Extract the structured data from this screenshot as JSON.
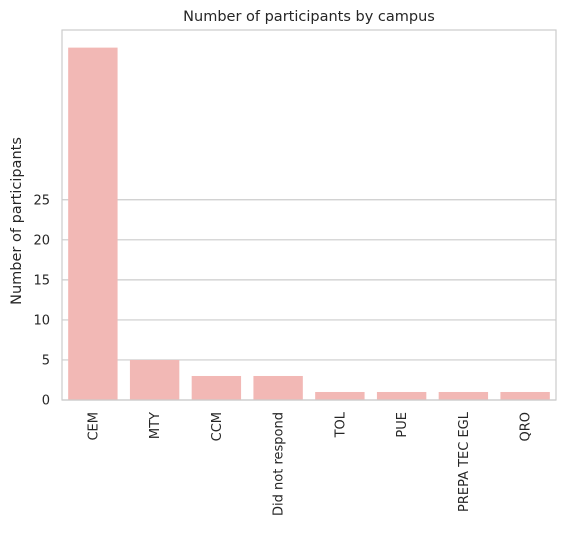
{
  "chart_data": {
    "type": "bar",
    "title": "Number of participants by campus",
    "xlabel": "",
    "ylabel": "Number of participants",
    "categories": [
      "CEM",
      "MTY",
      "CCM",
      "Did not respond",
      "TOL",
      "PUE",
      "PREPA TEC EGL",
      "QRO"
    ],
    "values": [
      44,
      5,
      3,
      3,
      1,
      1,
      1,
      1
    ],
    "yticks": [
      0,
      5,
      10,
      15,
      20,
      25
    ],
    "ylim": [
      0,
      46.2
    ],
    "grid": true,
    "bar_color": "#f2b8b5",
    "grid_color": "#cccccc",
    "frame_color": "#cccccc"
  }
}
